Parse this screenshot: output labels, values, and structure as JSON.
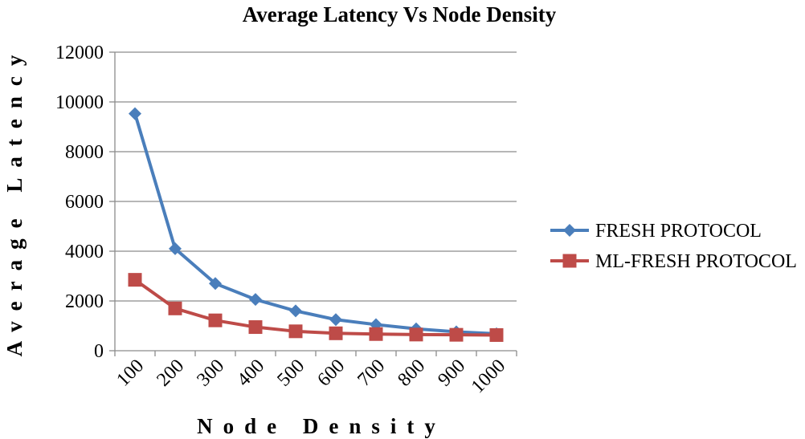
{
  "chart_data": {
    "type": "line",
    "title": "Average Latency Vs Node Density",
    "xlabel": "Node Density",
    "ylabel": "Average Latency",
    "categories": [
      "100",
      "200",
      "300",
      "400",
      "500",
      "600",
      "700",
      "800",
      "900",
      "1000"
    ],
    "ylim": [
      0,
      12000
    ],
    "yticks": [
      "0",
      "2000",
      "4000",
      "6000",
      "8000",
      "10000",
      "12000"
    ],
    "grid": true,
    "legend_position": "right",
    "series": [
      {
        "name": "FRESH PROTOCOL",
        "color": "#4a7ebb",
        "marker": "diamond",
        "values": [
          9530,
          4100,
          2700,
          2060,
          1600,
          1250,
          1050,
          880,
          760,
          680
        ]
      },
      {
        "name": "ML-FRESH PROTOCOL",
        "color": "#be4b48",
        "marker": "square",
        "values": [
          2850,
          1700,
          1220,
          950,
          780,
          700,
          670,
          650,
          640,
          630
        ]
      }
    ]
  }
}
